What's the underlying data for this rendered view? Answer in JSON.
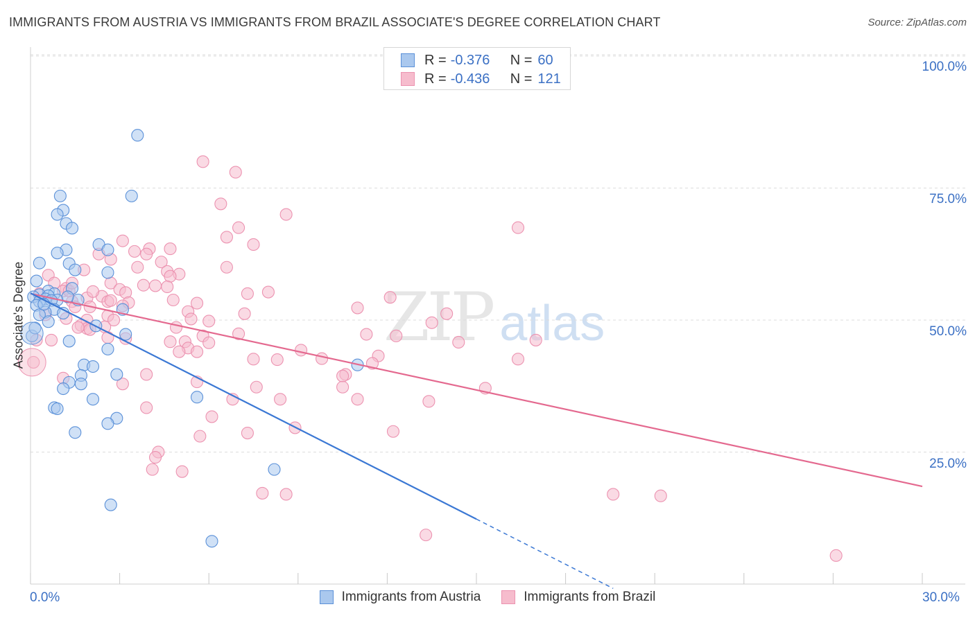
{
  "header": {
    "title": "IMMIGRANTS FROM AUSTRIA VS IMMIGRANTS FROM BRAZIL ASSOCIATE'S DEGREE CORRELATION CHART",
    "source": "Source: ZipAtlas.com"
  },
  "watermark": {
    "zip": "ZIP",
    "atlas": "atlas"
  },
  "legend": {
    "austria": {
      "r_label": "R =",
      "r_value": "-0.376",
      "n_label": "N =",
      "n_value": "60"
    },
    "brazil": {
      "r_label": "R =",
      "r_value": "-0.436",
      "n_label": "N =",
      "n_value": "121"
    }
  },
  "colors": {
    "austria_fill": "#aac8ee",
    "austria_stroke": "#5a90d8",
    "austria_line": "#3b78d4",
    "brazil_fill": "#f6bccd",
    "brazil_stroke": "#ec92b0",
    "brazil_line": "#e4698f",
    "tick_text": "#3b70c4"
  },
  "chart_data": {
    "type": "scatter",
    "title": "IMMIGRANTS FROM AUSTRIA VS IMMIGRANTS FROM BRAZIL ASSOCIATE'S DEGREE CORRELATION CHART",
    "xlabel": "",
    "ylabel": "Associate's Degree",
    "xlim": [
      0,
      30
    ],
    "ylim": [
      0,
      100
    ],
    "x_tick_labels": [
      "0.0%",
      "30.0%"
    ],
    "y_ticks": [
      25,
      50,
      75,
      100
    ],
    "y_tick_labels": [
      "25.0%",
      "50.0%",
      "75.0%",
      "100.0%"
    ],
    "grid": true,
    "legend_position": "bottom-center",
    "series": [
      {
        "name": "Immigrants from Austria",
        "r": -0.376,
        "n": 60,
        "trendline": {
          "x0": 0.0,
          "y0": 55.1,
          "x1": 15.0,
          "y1": 12.3,
          "dashed_to_x": 19.6
        },
        "points": [
          [
            3.6,
            85.0
          ],
          [
            1.0,
            73.5
          ],
          [
            3.4,
            73.5
          ],
          [
            1.1,
            70.8
          ],
          [
            0.9,
            70.0
          ],
          [
            1.2,
            68.3
          ],
          [
            1.4,
            67.4
          ],
          [
            2.3,
            64.3
          ],
          [
            1.2,
            63.3
          ],
          [
            2.6,
            63.3
          ],
          [
            0.9,
            62.7
          ],
          [
            0.3,
            60.8
          ],
          [
            1.3,
            60.7
          ],
          [
            1.5,
            59.5
          ],
          [
            2.6,
            59.0
          ],
          [
            0.2,
            57.4
          ],
          [
            1.4,
            56.0
          ],
          [
            0.6,
            55.5
          ],
          [
            0.8,
            55.0
          ],
          [
            0.3,
            54.8
          ],
          [
            0.6,
            54.6
          ],
          [
            0.1,
            54.4
          ],
          [
            0.5,
            54.0
          ],
          [
            0.9,
            53.8
          ],
          [
            0.7,
            53.7
          ],
          [
            0.3,
            53.5
          ],
          [
            1.6,
            53.8
          ],
          [
            0.2,
            52.8
          ],
          [
            0.8,
            52.0
          ],
          [
            3.1,
            52.0
          ],
          [
            0.5,
            51.5
          ],
          [
            1.1,
            51.3
          ],
          [
            0.3,
            51.0
          ],
          [
            0.6,
            49.7
          ],
          [
            2.2,
            48.9
          ],
          [
            0.05,
            47.0
          ],
          [
            3.2,
            47.3
          ],
          [
            1.3,
            46.0
          ],
          [
            2.6,
            44.5
          ],
          [
            1.8,
            41.5
          ],
          [
            2.1,
            41.2
          ],
          [
            11.0,
            41.5
          ],
          [
            1.7,
            39.5
          ],
          [
            2.9,
            39.7
          ],
          [
            1.3,
            38.2
          ],
          [
            1.7,
            37.9
          ],
          [
            1.1,
            37.0
          ],
          [
            2.1,
            35.0
          ],
          [
            5.6,
            35.4
          ],
          [
            0.8,
            33.4
          ],
          [
            0.9,
            33.2
          ],
          [
            2.9,
            31.4
          ],
          [
            2.6,
            30.4
          ],
          [
            1.5,
            28.7
          ],
          [
            8.2,
            21.7
          ],
          [
            2.7,
            15.0
          ],
          [
            6.1,
            8.1
          ],
          [
            0.15,
            48.5
          ],
          [
            0.45,
            53.0
          ],
          [
            1.25,
            54.4
          ]
        ]
      },
      {
        "name": "Immigrants from Brazil",
        "r": -0.436,
        "n": 121,
        "trendline": {
          "x0": 0.0,
          "y0": 55.0,
          "x1": 30.0,
          "y1": 18.5
        },
        "points": [
          [
            5.8,
            80.0
          ],
          [
            6.9,
            78.0
          ],
          [
            6.4,
            72.0
          ],
          [
            8.6,
            70.0
          ],
          [
            7.0,
            67.5
          ],
          [
            16.4,
            67.5
          ],
          [
            6.6,
            65.7
          ],
          [
            3.1,
            65.0
          ],
          [
            7.5,
            64.3
          ],
          [
            4.0,
            63.5
          ],
          [
            4.7,
            63.5
          ],
          [
            3.5,
            63.0
          ],
          [
            3.9,
            62.5
          ],
          [
            2.3,
            62.5
          ],
          [
            2.7,
            61.5
          ],
          [
            4.4,
            61.0
          ],
          [
            6.6,
            60.0
          ],
          [
            1.8,
            59.5
          ],
          [
            4.6,
            59.2
          ],
          [
            5.0,
            58.7
          ],
          [
            0.6,
            58.5
          ],
          [
            4.7,
            58.3
          ],
          [
            2.7,
            57.0
          ],
          [
            0.8,
            57.0
          ],
          [
            3.8,
            56.6
          ],
          [
            4.6,
            56.3
          ],
          [
            1.2,
            56.0
          ],
          [
            3.0,
            55.8
          ],
          [
            1.1,
            55.5
          ],
          [
            1.3,
            55.5
          ],
          [
            3.2,
            55.2
          ],
          [
            8.0,
            55.3
          ],
          [
            7.3,
            55.0
          ],
          [
            2.4,
            54.5
          ],
          [
            1.9,
            54.2
          ],
          [
            12.1,
            54.3
          ],
          [
            4.8,
            53.8
          ],
          [
            1.4,
            53.5
          ],
          [
            2.6,
            53.5
          ],
          [
            3.3,
            53.3
          ],
          [
            5.6,
            53.2
          ],
          [
            3.1,
            52.7
          ],
          [
            1.5,
            52.5
          ],
          [
            11.0,
            52.3
          ],
          [
            2.0,
            52.5
          ],
          [
            5.3,
            51.6
          ],
          [
            7.2,
            51.2
          ],
          [
            14.0,
            51.2
          ],
          [
            2.6,
            50.8
          ],
          [
            1.2,
            50.3
          ],
          [
            5.4,
            50.2
          ],
          [
            2.8,
            50.0
          ],
          [
            1.9,
            50.0
          ],
          [
            6.0,
            49.8
          ],
          [
            13.5,
            49.5
          ],
          [
            1.7,
            49.0
          ],
          [
            2.5,
            48.7
          ],
          [
            1.9,
            48.4
          ],
          [
            4.9,
            48.6
          ],
          [
            2.0,
            48.2
          ],
          [
            7.0,
            47.4
          ],
          [
            11.3,
            47.3
          ],
          [
            5.8,
            47.0
          ],
          [
            12.3,
            47.0
          ],
          [
            2.6,
            46.7
          ],
          [
            0.7,
            46.2
          ],
          [
            3.2,
            46.5
          ],
          [
            17.0,
            46.2
          ],
          [
            4.7,
            45.9
          ],
          [
            5.2,
            45.9
          ],
          [
            6.0,
            45.7
          ],
          [
            14.4,
            45.8
          ],
          [
            5.3,
            44.7
          ],
          [
            5.6,
            44.0
          ],
          [
            9.1,
            44.3
          ],
          [
            11.7,
            43.2
          ],
          [
            7.5,
            42.6
          ],
          [
            8.3,
            42.5
          ],
          [
            16.4,
            42.6
          ],
          [
            11.5,
            41.8
          ],
          [
            3.9,
            39.7
          ],
          [
            10.6,
            39.7
          ],
          [
            10.5,
            39.4
          ],
          [
            1.1,
            39.0
          ],
          [
            5.6,
            38.3
          ],
          [
            3.1,
            37.9
          ],
          [
            7.6,
            37.3
          ],
          [
            10.5,
            37.3
          ],
          [
            15.3,
            37.1
          ],
          [
            6.8,
            35.0
          ],
          [
            11.0,
            35.0
          ],
          [
            8.4,
            35.0
          ],
          [
            13.4,
            34.6
          ],
          [
            3.9,
            33.4
          ],
          [
            6.1,
            31.7
          ],
          [
            8.9,
            29.6
          ],
          [
            12.2,
            28.9
          ],
          [
            7.3,
            28.6
          ],
          [
            5.7,
            28.0
          ],
          [
            4.3,
            25.0
          ],
          [
            4.2,
            24.0
          ],
          [
            4.1,
            21.7
          ],
          [
            5.1,
            21.3
          ],
          [
            7.8,
            17.2
          ],
          [
            8.6,
            17.0
          ],
          [
            19.6,
            17.0
          ],
          [
            21.2,
            16.7
          ],
          [
            13.3,
            9.3
          ],
          [
            27.1,
            5.4
          ],
          [
            0.1,
            42.0
          ],
          [
            0.3,
            55.0
          ],
          [
            0.2,
            46.2
          ],
          [
            1.6,
            48.6
          ],
          [
            2.7,
            53.7
          ],
          [
            0.5,
            51.0
          ],
          [
            3.6,
            60.0
          ],
          [
            4.2,
            56.5
          ],
          [
            2.1,
            55.4
          ],
          [
            1.4,
            57.0
          ],
          [
            5.0,
            44.0
          ],
          [
            9.8,
            42.7
          ]
        ]
      }
    ]
  }
}
